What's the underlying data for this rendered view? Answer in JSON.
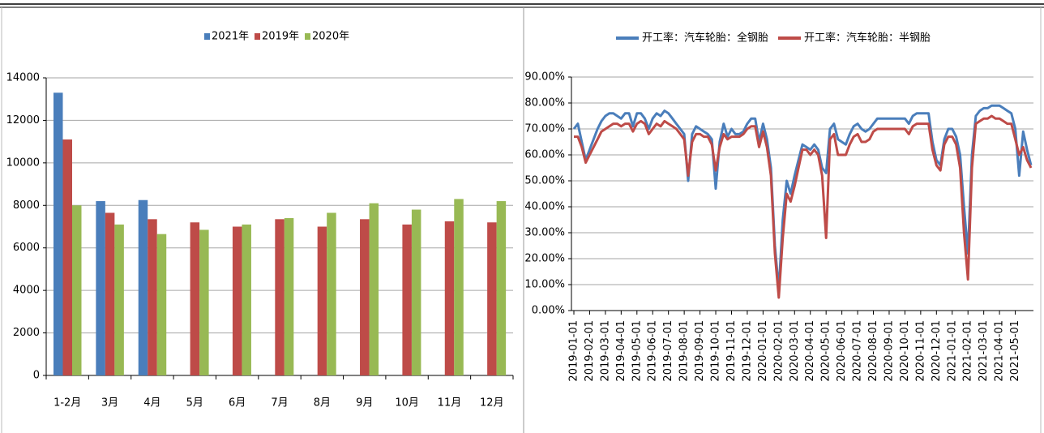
{
  "chart_data": [
    {
      "type": "bar",
      "categories": [
        "1-2月",
        "3月",
        "4月",
        "5月",
        "6月",
        "7月",
        "8月",
        "9月",
        "10月",
        "11月",
        "12月"
      ],
      "series": [
        {
          "name": "2021年",
          "color": "#4a7ebb",
          "values": [
            13300,
            8200,
            8250,
            null,
            null,
            null,
            null,
            null,
            null,
            null,
            null
          ]
        },
        {
          "name": "2019年",
          "color": "#be4b48",
          "values": [
            11100,
            7650,
            7350,
            7200,
            7000,
            7350,
            7000,
            7350,
            7100,
            7250,
            7200
          ]
        },
        {
          "name": "2020年",
          "color": "#98b954",
          "values": [
            8000,
            7100,
            6650,
            6850,
            7100,
            7400,
            7650,
            8100,
            7800,
            8300,
            8200
          ]
        }
      ],
      "ylim": [
        0,
        14000
      ],
      "yticks": [
        0,
        2000,
        4000,
        6000,
        8000,
        10000,
        12000,
        14000
      ],
      "grid": true,
      "legend": "top"
    },
    {
      "type": "line",
      "categories": [
        "2019-01-01",
        null,
        null,
        null,
        "2019-02-01",
        null,
        null,
        null,
        "2019-03-01",
        null,
        null,
        null,
        "2019-04-01",
        null,
        null,
        null,
        "2019-05-01",
        null,
        null,
        null,
        "2019-06-01",
        null,
        null,
        null,
        "2019-07-01",
        null,
        null,
        null,
        "2019-08-01",
        null,
        null,
        null,
        "2019-09-01",
        null,
        null,
        null,
        "2019-10-01",
        null,
        null,
        null,
        "2019-11-01",
        null,
        null,
        null,
        "2019-12-01",
        null,
        null,
        null,
        "2020-01-01",
        null,
        null,
        null,
        "2020-02-01",
        null,
        null,
        null,
        "2020-03-01",
        null,
        null,
        null,
        "2020-04-01",
        null,
        null,
        null,
        "2020-05-01",
        null,
        null,
        null,
        "2020-06-01",
        null,
        null,
        null,
        "2020-07-01",
        null,
        null,
        null,
        "2020-08-01",
        null,
        null,
        null,
        "2020-09-01",
        null,
        null,
        null,
        "2020-10-01",
        null,
        null,
        null,
        "2020-11-01",
        null,
        null,
        null,
        "2020-12-01",
        null,
        null,
        null,
        "2021-01-01",
        null,
        null,
        null,
        "2021-02-01",
        null,
        null,
        null,
        "2021-03-01",
        null,
        null,
        null,
        "2021-04-01",
        null,
        null,
        null,
        "2021-05-01",
        null,
        null,
        null,
        null
      ],
      "series": [
        {
          "name": "开工率：汽车轮胎：全钢胎",
          "color": "#4a7ebb",
          "values": [
            70,
            72,
            65,
            58,
            62,
            66,
            70,
            73,
            75,
            76,
            76,
            75,
            74,
            76,
            76,
            71,
            76,
            76,
            74,
            70,
            74,
            76,
            75,
            77,
            76,
            74,
            72,
            70,
            68,
            50,
            68,
            71,
            70,
            69,
            68,
            66,
            47,
            65,
            72,
            67,
            70,
            68,
            68,
            69,
            72,
            74,
            74,
            65,
            72,
            66,
            55,
            25,
            8,
            35,
            50,
            45,
            52,
            58,
            64,
            63,
            62,
            64,
            62,
            55,
            53,
            70,
            72,
            66,
            65,
            64,
            68,
            71,
            72,
            70,
            69,
            70,
            72,
            74,
            74,
            74,
            74,
            74,
            74,
            74,
            74,
            72,
            75,
            76,
            76,
            76,
            76,
            65,
            58,
            56,
            66,
            70,
            70,
            67,
            60,
            40,
            22,
            60,
            75,
            77,
            78,
            78,
            79,
            79,
            79,
            78,
            77,
            76,
            70,
            52,
            69,
            62,
            56
          ]
        },
        {
          "name": "开工率：汽车轮胎：半钢胎",
          "color": "#be4b48",
          "values": [
            67,
            67,
            63,
            57,
            60,
            63,
            66,
            69,
            70,
            71,
            72,
            72,
            71,
            72,
            72,
            69,
            72,
            73,
            72,
            68,
            70,
            72,
            71,
            73,
            72,
            71,
            70,
            68,
            66,
            52,
            65,
            68,
            68,
            67,
            67,
            64,
            54,
            63,
            68,
            66,
            67,
            67,
            67,
            68,
            70,
            71,
            71,
            63,
            69,
            63,
            52,
            22,
            5,
            28,
            45,
            42,
            48,
            55,
            62,
            62,
            60,
            62,
            60,
            52,
            28,
            66,
            68,
            60,
            60,
            60,
            64,
            67,
            68,
            65,
            65,
            66,
            69,
            70,
            70,
            70,
            70,
            70,
            70,
            70,
            70,
            68,
            71,
            72,
            72,
            72,
            72,
            62,
            56,
            54,
            64,
            67,
            67,
            64,
            55,
            30,
            12,
            55,
            72,
            73,
            74,
            74,
            75,
            74,
            74,
            73,
            72,
            72,
            66,
            60,
            63,
            58,
            55
          ]
        }
      ],
      "ylim": [
        0,
        90
      ],
      "yticks": [
        {
          "value": 0,
          "label": "0.00%"
        },
        {
          "value": 10,
          "label": "10.00%"
        },
        {
          "value": 20,
          "label": "20.00%"
        },
        {
          "value": 30,
          "label": "30.00%"
        },
        {
          "value": 40,
          "label": "40.00%"
        },
        {
          "value": 50,
          "label": "50.00%"
        },
        {
          "value": 60,
          "label": "60.00%"
        },
        {
          "value": 70,
          "label": "70.00%"
        },
        {
          "value": 80,
          "label": "80.00%"
        },
        {
          "value": 90,
          "label": "90.00%"
        }
      ],
      "grid": true,
      "legend": "top"
    }
  ]
}
